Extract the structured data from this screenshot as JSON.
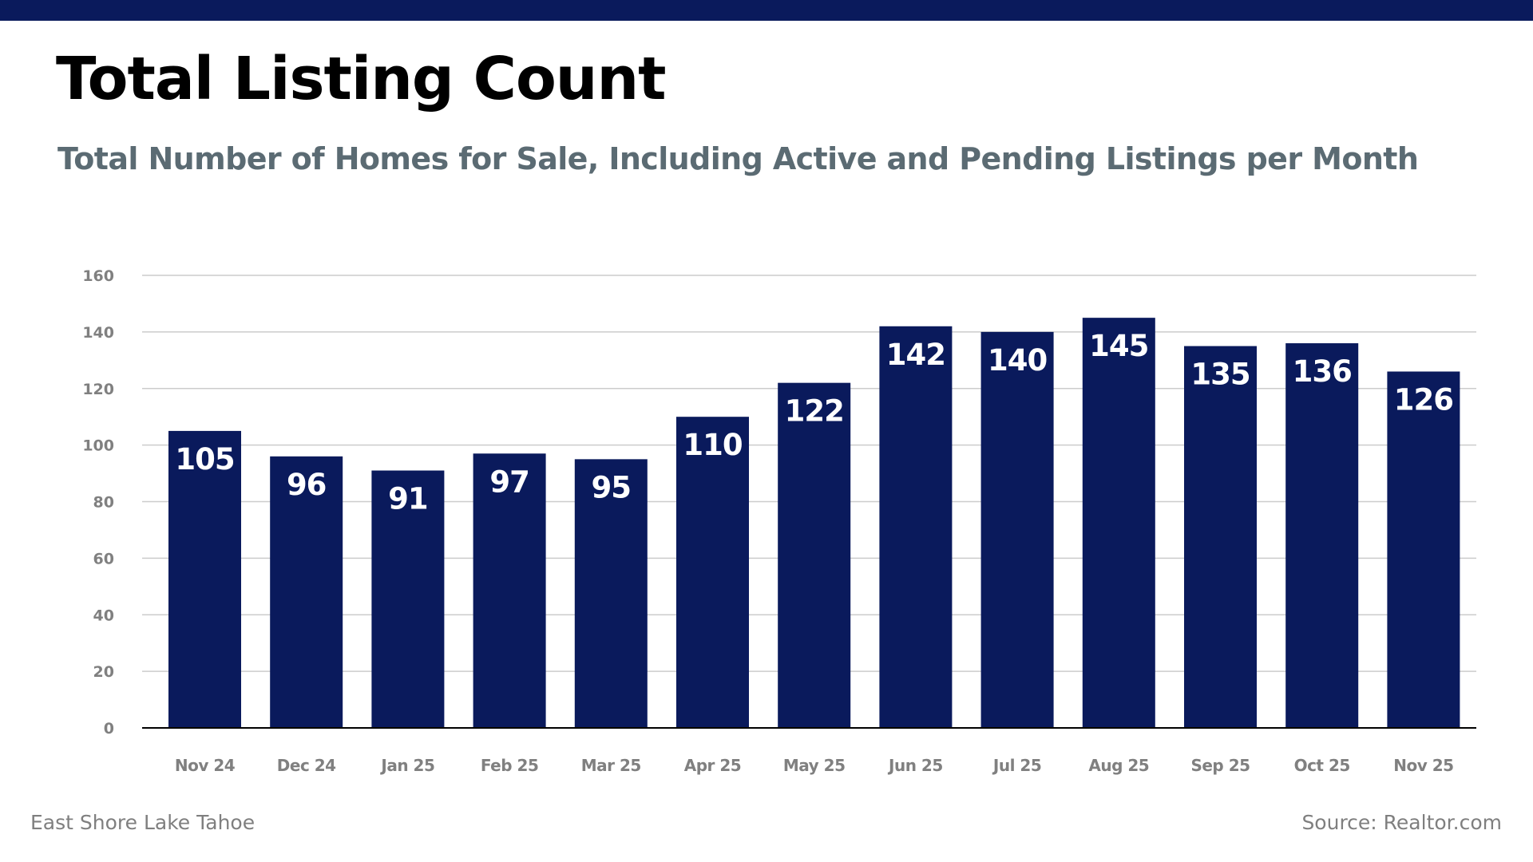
{
  "colors": {
    "brand_navy": "#0a1a5c",
    "bar": "#0a1a5c",
    "subtitle": "#5b6b73",
    "axis_text": "#808080",
    "gridline": "#cccccc",
    "baseline": "#000000",
    "footer_text": "#7f7f7f",
    "data_label": "#ffffff"
  },
  "header": {
    "title": "Total Listing Count",
    "subtitle": "Total Number of Homes for Sale, Including Active and Pending Listings per Month"
  },
  "footer": {
    "region": "East Shore Lake Tahoe",
    "source": "Source: Realtor.com"
  },
  "chart_data": {
    "type": "bar",
    "title": "Total Listing Count",
    "subtitle": "Total Number of Homes for Sale, Including Active and Pending Listings per Month",
    "xlabel": "",
    "ylabel": "",
    "categories": [
      "Nov 24",
      "Dec 24",
      "Jan 25",
      "Feb 25",
      "Mar 25",
      "Apr 25",
      "May 25",
      "Jun 25",
      "Jul 25",
      "Aug 25",
      "Sep 25",
      "Oct 25",
      "Nov 25"
    ],
    "series": [
      {
        "name": "Total Listing Count",
        "values": [
          105,
          96,
          91,
          97,
          95,
          110,
          122,
          142,
          140,
          145,
          135,
          136,
          126
        ]
      }
    ],
    "ylim": [
      0,
      160
    ],
    "yticks": [
      0,
      20,
      40,
      60,
      80,
      100,
      120,
      140,
      160
    ],
    "grid": true,
    "legend": "none",
    "data_labels": "inside-top"
  }
}
